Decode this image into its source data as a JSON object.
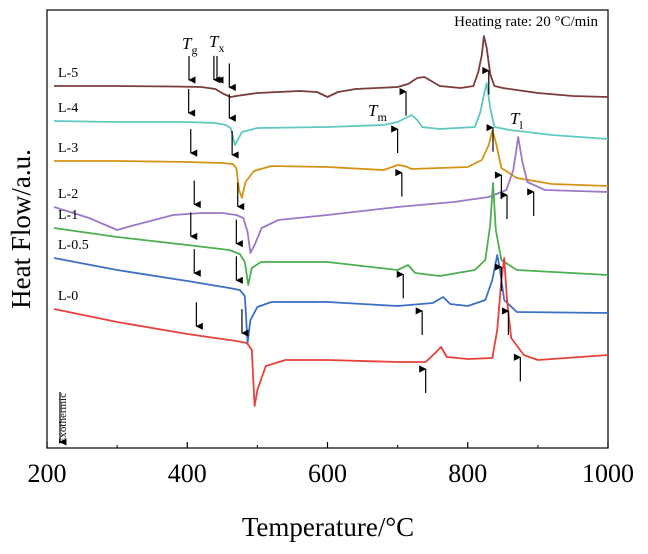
{
  "chart_data": {
    "type": "line",
    "xlabel": "Temperature/°C",
    "ylabel": "Heat Flow/a.u.",
    "xlim": [
      200,
      1000
    ],
    "xticks": [
      200,
      400,
      600,
      800,
      1000
    ],
    "yticks_shown": false,
    "grid": false,
    "annotation_rate": "Heating rate: 20 °C/min",
    "annotation_exo": "Exothermic",
    "annotation_labels": {
      "Tg": {
        "base": "T",
        "sub": "g"
      },
      "Tx": {
        "base": "T",
        "sub": "x"
      },
      "Tm": {
        "base": "T",
        "sub": "m"
      },
      "Tl": {
        "base": "T",
        "sub": "l"
      }
    },
    "series": [
      {
        "name": "L-5",
        "color": "#7b3b3b",
        "points": [
          [
            210,
            86
          ],
          [
            300,
            86
          ],
          [
            380,
            86.5
          ],
          [
            420,
            87
          ],
          [
            440,
            89
          ],
          [
            452,
            94
          ],
          [
            462,
            97
          ],
          [
            470,
            96
          ],
          [
            500,
            93
          ],
          [
            560,
            91
          ],
          [
            585,
            92
          ],
          [
            600,
            97
          ],
          [
            615,
            92
          ],
          [
            640,
            89
          ],
          [
            700,
            87
          ],
          [
            715,
            84
          ],
          [
            728,
            78
          ],
          [
            738,
            77
          ],
          [
            748,
            81
          ],
          [
            760,
            86
          ],
          [
            790,
            88
          ],
          [
            808,
            86
          ],
          [
            815,
            72
          ],
          [
            820,
            55
          ],
          [
            823,
            36
          ],
          [
            827,
            48
          ],
          [
            832,
            74
          ],
          [
            838,
            86
          ],
          [
            850,
            88
          ],
          [
            900,
            93
          ],
          [
            950,
            96
          ],
          [
            1000,
            97
          ]
        ],
        "Tg": 438,
        "Tx": 460,
        "Tm": 712,
        "Tl": 830
      },
      {
        "name": "L-4",
        "color": "#5fc8c0",
        "points": [
          [
            210,
            121
          ],
          [
            300,
            122
          ],
          [
            400,
            122
          ],
          [
            440,
            123
          ],
          [
            455,
            125
          ],
          [
            462,
            128
          ],
          [
            468,
            145
          ],
          [
            472,
            140
          ],
          [
            478,
            132
          ],
          [
            500,
            128
          ],
          [
            600,
            127
          ],
          [
            680,
            125
          ],
          [
            700,
            122
          ],
          [
            720,
            115
          ],
          [
            728,
            120
          ],
          [
            735,
            127
          ],
          [
            760,
            129
          ],
          [
            810,
            127
          ],
          [
            818,
            112
          ],
          [
            823,
            95
          ],
          [
            827,
            83
          ],
          [
            832,
            108
          ],
          [
            838,
            127
          ],
          [
            860,
            130
          ],
          [
            920,
            135
          ],
          [
            1000,
            139
          ]
        ],
        "Tg": 402,
        "Tx": 460,
        "Tm": 700,
        "Tl": 836
      },
      {
        "name": "L-3",
        "color": "#d49316",
        "points": [
          [
            210,
            161
          ],
          [
            300,
            161
          ],
          [
            400,
            162
          ],
          [
            450,
            163
          ],
          [
            465,
            164
          ],
          [
            470,
            168
          ],
          [
            474,
            190
          ],
          [
            478,
            198
          ],
          [
            483,
            182
          ],
          [
            495,
            171
          ],
          [
            520,
            166
          ],
          [
            600,
            167
          ],
          [
            680,
            170
          ],
          [
            700,
            165
          ],
          [
            710,
            166
          ],
          [
            720,
            169
          ],
          [
            800,
            167
          ],
          [
            820,
            160
          ],
          [
            830,
            145
          ],
          [
            835,
            131
          ],
          [
            840,
            142
          ],
          [
            848,
            168
          ],
          [
            870,
            178
          ],
          [
            920,
            184
          ],
          [
            1000,
            186
          ]
        ],
        "Tg": 405,
        "Tx": 464,
        "Tm": 706,
        "Tl": 848
      },
      {
        "name": "L-2",
        "color": "#9b78c8",
        "points": [
          [
            210,
            207
          ],
          [
            260,
            218
          ],
          [
            300,
            230
          ],
          [
            320,
            226
          ],
          [
            380,
            215
          ],
          [
            420,
            213
          ],
          [
            450,
            213
          ],
          [
            470,
            215
          ],
          [
            480,
            218
          ],
          [
            486,
            232
          ],
          [
            490,
            253
          ],
          [
            496,
            245
          ],
          [
            506,
            228
          ],
          [
            530,
            220
          ],
          [
            600,
            215
          ],
          [
            700,
            207
          ],
          [
            780,
            202
          ],
          [
            830,
            197
          ],
          [
            855,
            190
          ],
          [
            865,
            170
          ],
          [
            872,
            137
          ],
          [
            878,
            162
          ],
          [
            885,
            182
          ],
          [
            910,
            190
          ],
          [
            1000,
            192
          ]
        ],
        "Tg": 410,
        "Tx": 472,
        "Tm": 856,
        "Tl": 894
      },
      {
        "name": "L-1",
        "color": "#4caf50",
        "points": [
          [
            210,
            228
          ],
          [
            300,
            237
          ],
          [
            400,
            245
          ],
          [
            460,
            250
          ],
          [
            475,
            254
          ],
          [
            482,
            262
          ],
          [
            487,
            285
          ],
          [
            492,
            268
          ],
          [
            505,
            262
          ],
          [
            600,
            262
          ],
          [
            700,
            270
          ],
          [
            715,
            265
          ],
          [
            725,
            273
          ],
          [
            760,
            276
          ],
          [
            810,
            270
          ],
          [
            825,
            260
          ],
          [
            832,
            225
          ],
          [
            836,
            183
          ],
          [
            840,
            230
          ],
          [
            848,
            260
          ],
          [
            870,
            270
          ],
          [
            1000,
            275
          ]
        ],
        "Tg": 405,
        "Tx": 470,
        "Tm": 708,
        "Tl": 848
      },
      {
        "name": "L-0.5",
        "color": "#3c6fc8",
        "points": [
          [
            210,
            258
          ],
          [
            300,
            270
          ],
          [
            400,
            281
          ],
          [
            460,
            288
          ],
          [
            475,
            290
          ],
          [
            482,
            296
          ],
          [
            486,
            343
          ],
          [
            490,
            320
          ],
          [
            500,
            307
          ],
          [
            520,
            302
          ],
          [
            600,
            302
          ],
          [
            700,
            306
          ],
          [
            750,
            303
          ],
          [
            765,
            297
          ],
          [
            775,
            304
          ],
          [
            800,
            306
          ],
          [
            825,
            300
          ],
          [
            835,
            280
          ],
          [
            842,
            255
          ],
          [
            846,
            270
          ],
          [
            852,
            300
          ],
          [
            870,
            312
          ],
          [
            1000,
            313
          ]
        ],
        "Tg": 410,
        "Tx": 470,
        "Tm": 735,
        "Tl": 858
      },
      {
        "name": "L-0",
        "color": "#e8403a",
        "points": [
          [
            210,
            309
          ],
          [
            300,
            322
          ],
          [
            400,
            334
          ],
          [
            470,
            341
          ],
          [
            485,
            343
          ],
          [
            492,
            350
          ],
          [
            496,
            406
          ],
          [
            500,
            390
          ],
          [
            512,
            366
          ],
          [
            540,
            360
          ],
          [
            600,
            360
          ],
          [
            700,
            362
          ],
          [
            740,
            362
          ],
          [
            755,
            352
          ],
          [
            762,
            347
          ],
          [
            770,
            357
          ],
          [
            800,
            359
          ],
          [
            835,
            358
          ],
          [
            842,
            330
          ],
          [
            848,
            280
          ],
          [
            852,
            258
          ],
          [
            856,
            300
          ],
          [
            862,
            338
          ],
          [
            880,
            355
          ],
          [
            900,
            360
          ],
          [
            1000,
            355
          ]
        ],
        "Tg": 413,
        "Tx": 478,
        "Tm": 740,
        "Tl": 875
      }
    ]
  }
}
